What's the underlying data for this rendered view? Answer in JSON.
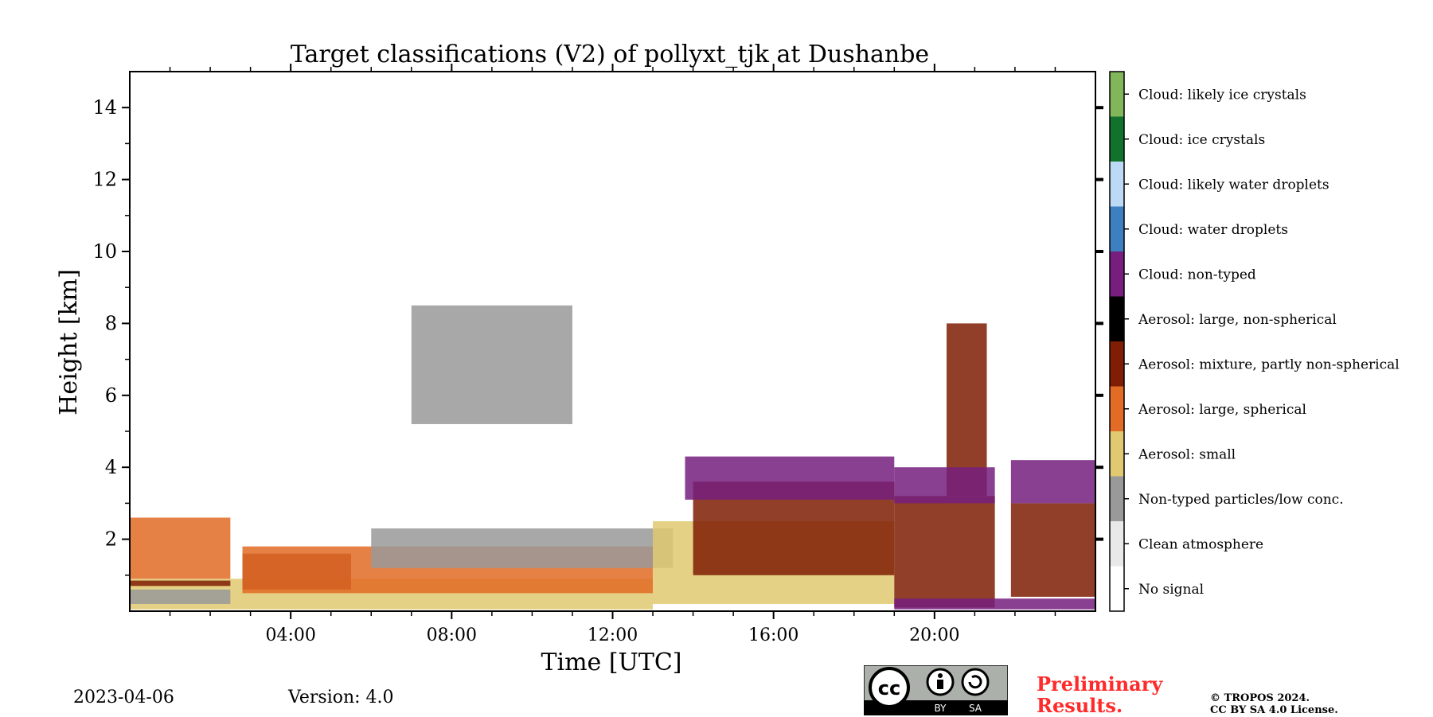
{
  "chart_data": {
    "type": "heatmap",
    "title": "Target classifications (V2) of pollyxt_tjk at Dushanbe",
    "xlabel": "Time [UTC]",
    "ylabel": "Height [km]",
    "xlim": [
      0,
      24
    ],
    "ylim": [
      0,
      15
    ],
    "x_ticks": [
      {
        "value": 4,
        "label": "04:00"
      },
      {
        "value": 8,
        "label": "08:00"
      },
      {
        "value": 12,
        "label": "12:00"
      },
      {
        "value": 16,
        "label": "16:00"
      },
      {
        "value": 20,
        "label": "20:00"
      }
    ],
    "y_ticks": [
      {
        "value": 2,
        "label": "2"
      },
      {
        "value": 4,
        "label": "4"
      },
      {
        "value": 6,
        "label": "6"
      },
      {
        "value": 8,
        "label": "8"
      },
      {
        "value": 10,
        "label": "10"
      },
      {
        "value": 12,
        "label": "12"
      },
      {
        "value": 14,
        "label": "14"
      }
    ],
    "x_minor_step": 1,
    "y_minor_step": 1,
    "colorbar": [
      {
        "label": "No signal",
        "color": "#ffffff"
      },
      {
        "label": "Clean atmosphere",
        "color": "#e9e9e9"
      },
      {
        "label": "Non-typed particles/low conc.",
        "color": "#999999"
      },
      {
        "label": "Aerosol: small",
        "color": "#e0c970"
      },
      {
        "label": "Aerosol: large, spherical",
        "color": "#e26b26"
      },
      {
        "label": "Aerosol: mixture, partly non-spherical",
        "color": "#7f1d05"
      },
      {
        "label": "Aerosol: large, non-spherical",
        "color": "#000000"
      },
      {
        "label": "Cloud: non-typed",
        "color": "#761f7e"
      },
      {
        "label": "Cloud: water droplets",
        "color": "#3c80c0"
      },
      {
        "label": "Cloud: likely water droplets",
        "color": "#bcdaf6"
      },
      {
        "label": "Cloud: ice crystals",
        "color": "#10722d"
      },
      {
        "label": "Cloud: likely ice crystals",
        "color": "#82b65a"
      }
    ],
    "regions": [
      {
        "class": "Aerosol: small",
        "x0": 0.0,
        "x1": 13.0,
        "y0": 0.05,
        "y1": 0.9
      },
      {
        "class": "Aerosol: large, spherical",
        "x0": 0.0,
        "x1": 2.5,
        "y0": 0.9,
        "y1": 2.6
      },
      {
        "class": "Aerosol: mixture, partly non-spherical",
        "x0": 0.0,
        "x1": 2.5,
        "y0": 0.7,
        "y1": 0.85
      },
      {
        "class": "Non-typed particles/low conc.",
        "x0": 0.0,
        "x1": 2.5,
        "y0": 0.2,
        "y1": 0.6
      },
      {
        "class": "Aerosol: mixture, partly non-spherical",
        "x0": 2.8,
        "x1": 5.5,
        "y0": 0.6,
        "y1": 1.6
      },
      {
        "class": "Aerosol: large, spherical",
        "x0": 2.8,
        "x1": 13.0,
        "y0": 0.5,
        "y1": 1.8
      },
      {
        "class": "Non-typed particles/low conc.",
        "x0": 6.0,
        "x1": 13.5,
        "y0": 1.2,
        "y1": 2.3
      },
      {
        "class": "Non-typed particles/low conc.",
        "x0": 7.0,
        "x1": 11.0,
        "y0": 5.2,
        "y1": 8.5
      },
      {
        "class": "Aerosol: small",
        "x0": 13.0,
        "x1": 19.0,
        "y0": 0.2,
        "y1": 2.5
      },
      {
        "class": "Aerosol: mixture, partly non-spherical",
        "x0": 14.0,
        "x1": 19.0,
        "y0": 1.0,
        "y1": 3.6
      },
      {
        "class": "Cloud: non-typed",
        "x0": 13.8,
        "x1": 19.0,
        "y0": 3.1,
        "y1": 4.3
      },
      {
        "class": "Aerosol: mixture, partly non-spherical",
        "x0": 19.0,
        "x1": 21.5,
        "y0": 0.1,
        "y1": 3.2
      },
      {
        "class": "Aerosol: mixture, partly non-spherical",
        "x0": 20.3,
        "x1": 21.3,
        "y0": 3.2,
        "y1": 8.0
      },
      {
        "class": "Cloud: non-typed",
        "x0": 19.0,
        "x1": 21.5,
        "y0": 3.0,
        "y1": 4.0
      },
      {
        "class": "Aerosol: mixture, partly non-spherical",
        "x0": 21.9,
        "x1": 24.0,
        "y0": 0.4,
        "y1": 3.0
      },
      {
        "class": "Cloud: non-typed",
        "x0": 21.9,
        "x1": 24.0,
        "y0": 3.0,
        "y1": 4.2
      },
      {
        "class": "Cloud: non-typed",
        "x0": 19.0,
        "x1": 24.0,
        "y0": 0.05,
        "y1": 0.35
      }
    ],
    "grid": false,
    "colorbar_placement": "right"
  },
  "footer": {
    "date": "2023-04-06",
    "version": "Version: 4.0",
    "preliminary_line1": "Preliminary",
    "preliminary_line2": "Results.",
    "copyright_line1": "© TROPOS 2024.",
    "copyright_line2": "CC BY SA 4.0 License.",
    "cc_badge": {
      "cc": "cc",
      "by": "BY",
      "sa": "SA"
    }
  }
}
